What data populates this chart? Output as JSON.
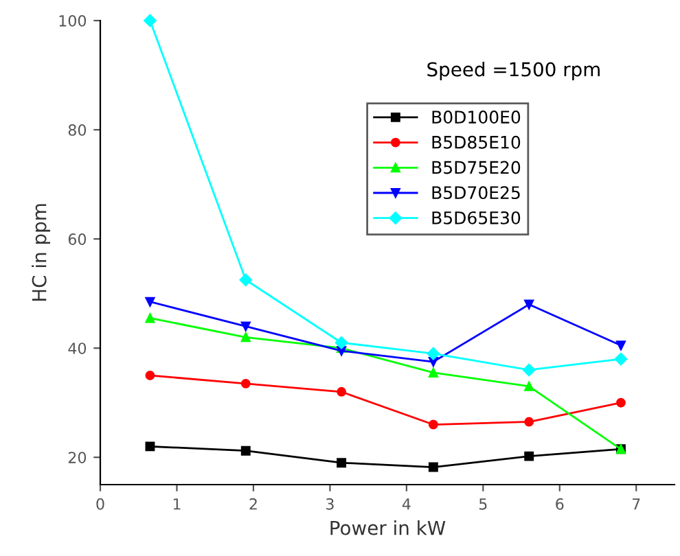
{
  "chart_data": {
    "type": "line",
    "xlabel": "Power in kW",
    "ylabel": "HC in ppm",
    "annotations": [
      "Speed =1500 rpm"
    ],
    "x": [
      0.65,
      1.9,
      3.15,
      4.35,
      5.6,
      6.8
    ],
    "series": [
      {
        "name": "B0D100E0",
        "color": "#000000",
        "marker": "square",
        "values": [
          22,
          21.2,
          19,
          18.2,
          20.2,
          21.5
        ]
      },
      {
        "name": "B5D85E10",
        "color": "#ff0000",
        "marker": "circle",
        "values": [
          35,
          33.5,
          32,
          26,
          26.5,
          30
        ]
      },
      {
        "name": "B5D75E20",
        "color": "#00ff00",
        "marker": "triangle",
        "values": [
          45.5,
          42,
          40,
          35.5,
          33,
          21.5
        ]
      },
      {
        "name": "B5D70E25",
        "color": "#0000ff",
        "marker": "triangle_down",
        "values": [
          48.5,
          44,
          39.5,
          37.5,
          48,
          40.5
        ]
      },
      {
        "name": "B5D65E30",
        "color": "#00ffff",
        "marker": "diamond",
        "values": [
          100,
          52.5,
          41,
          39,
          36,
          38
        ]
      }
    ],
    "xlim": [
      0,
      7.5
    ],
    "ylim": [
      15,
      100
    ],
    "xticks": [
      0,
      1,
      2,
      3,
      4,
      5,
      6,
      7
    ],
    "yticks": [
      20,
      40,
      60,
      80,
      100
    ],
    "grid": false,
    "legend": "top right"
  }
}
